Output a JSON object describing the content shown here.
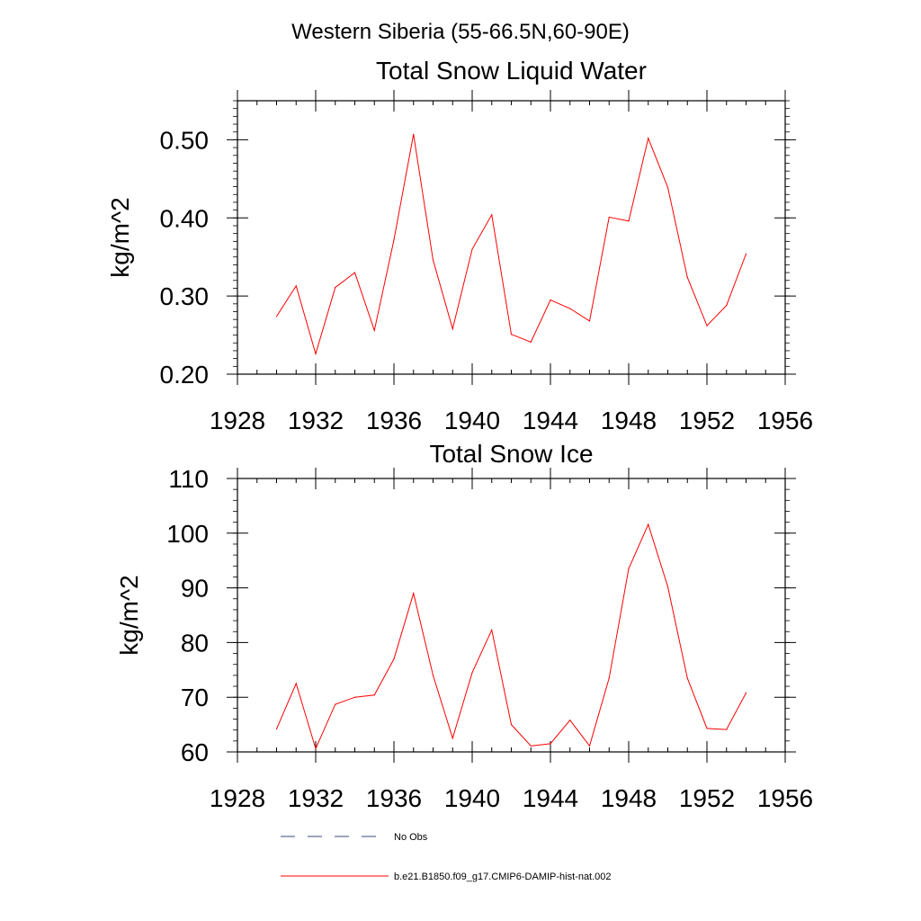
{
  "main_title": "Western Siberia (55-66.5N,60-90E)",
  "chart_data": [
    {
      "type": "line",
      "title": "Total Snow Liquid Water",
      "ylabel": "kg/m^2",
      "xlabel": "",
      "xlim": [
        1928,
        1956
      ],
      "ylim": [
        0.2,
        0.55
      ],
      "x_ticks": [
        1928,
        1932,
        1936,
        1940,
        1944,
        1948,
        1952,
        1956
      ],
      "x_tick_labels": [
        "1928",
        "1932",
        "1936",
        "1940",
        "1944",
        "1948",
        "1952",
        "1956"
      ],
      "y_ticks": [
        0.2,
        0.3,
        0.4,
        0.5
      ],
      "y_tick_labels": [
        "0.20",
        "0.30",
        "0.40",
        "0.50"
      ],
      "grid": false,
      "series": [
        {
          "name": "b.e21.B1850.f09_g17.CMIP6-DAMIP-hist-nat.002",
          "color": "#ff0000",
          "x": [
            1930,
            1931,
            1932,
            1933,
            1934,
            1935,
            1936,
            1937,
            1938,
            1939,
            1940,
            1941,
            1942,
            1943,
            1944,
            1945,
            1946,
            1947,
            1948,
            1949,
            1950,
            1951,
            1952,
            1953,
            1954
          ],
          "y": [
            0.274,
            0.313,
            0.226,
            0.311,
            0.33,
            0.256,
            0.372,
            0.507,
            0.346,
            0.258,
            0.36,
            0.404,
            0.251,
            0.241,
            0.295,
            0.284,
            0.268,
            0.401,
            0.396,
            0.502,
            0.439,
            0.324,
            0.262,
            0.288,
            0.354
          ]
        }
      ]
    },
    {
      "type": "line",
      "title": "Total Snow Ice",
      "ylabel": "kg/m^2",
      "xlabel": "",
      "xlim": [
        1928,
        1956
      ],
      "ylim": [
        60,
        110
      ],
      "x_ticks": [
        1928,
        1932,
        1936,
        1940,
        1944,
        1948,
        1952,
        1956
      ],
      "x_tick_labels": [
        "1928",
        "1932",
        "1936",
        "1940",
        "1944",
        "1948",
        "1952",
        "1956"
      ],
      "y_ticks": [
        60,
        70,
        80,
        90,
        100,
        110
      ],
      "y_tick_labels": [
        "60",
        "70",
        "80",
        "90",
        "100",
        "110"
      ],
      "grid": false,
      "series": [
        {
          "name": "b.e21.B1850.f09_g17.CMIP6-DAMIP-hist-nat.002",
          "color": "#ff0000",
          "x": [
            1930,
            1931,
            1932,
            1933,
            1934,
            1935,
            1936,
            1937,
            1938,
            1939,
            1940,
            1941,
            1942,
            1943,
            1944,
            1945,
            1946,
            1947,
            1948,
            1949,
            1950,
            1951,
            1952,
            1953,
            1954
          ],
          "y": [
            64.2,
            72.5,
            60.6,
            68.7,
            70.0,
            70.4,
            77.0,
            89.0,
            74.0,
            62.5,
            74.5,
            82.3,
            65.0,
            61.1,
            61.5,
            65.8,
            61.1,
            73.5,
            93.5,
            101.6,
            90.2,
            73.5,
            64.3,
            64.1,
            70.8
          ]
        }
      ]
    }
  ],
  "legend": {
    "placement": "bottom",
    "items": [
      {
        "label": "No Obs",
        "style": "dashed",
        "color": "#3c4a7a"
      },
      {
        "label": "b.e21.B1850.f09_g17.CMIP6-DAMIP-hist-nat.002",
        "style": "solid",
        "color": "#ff0000"
      }
    ]
  }
}
